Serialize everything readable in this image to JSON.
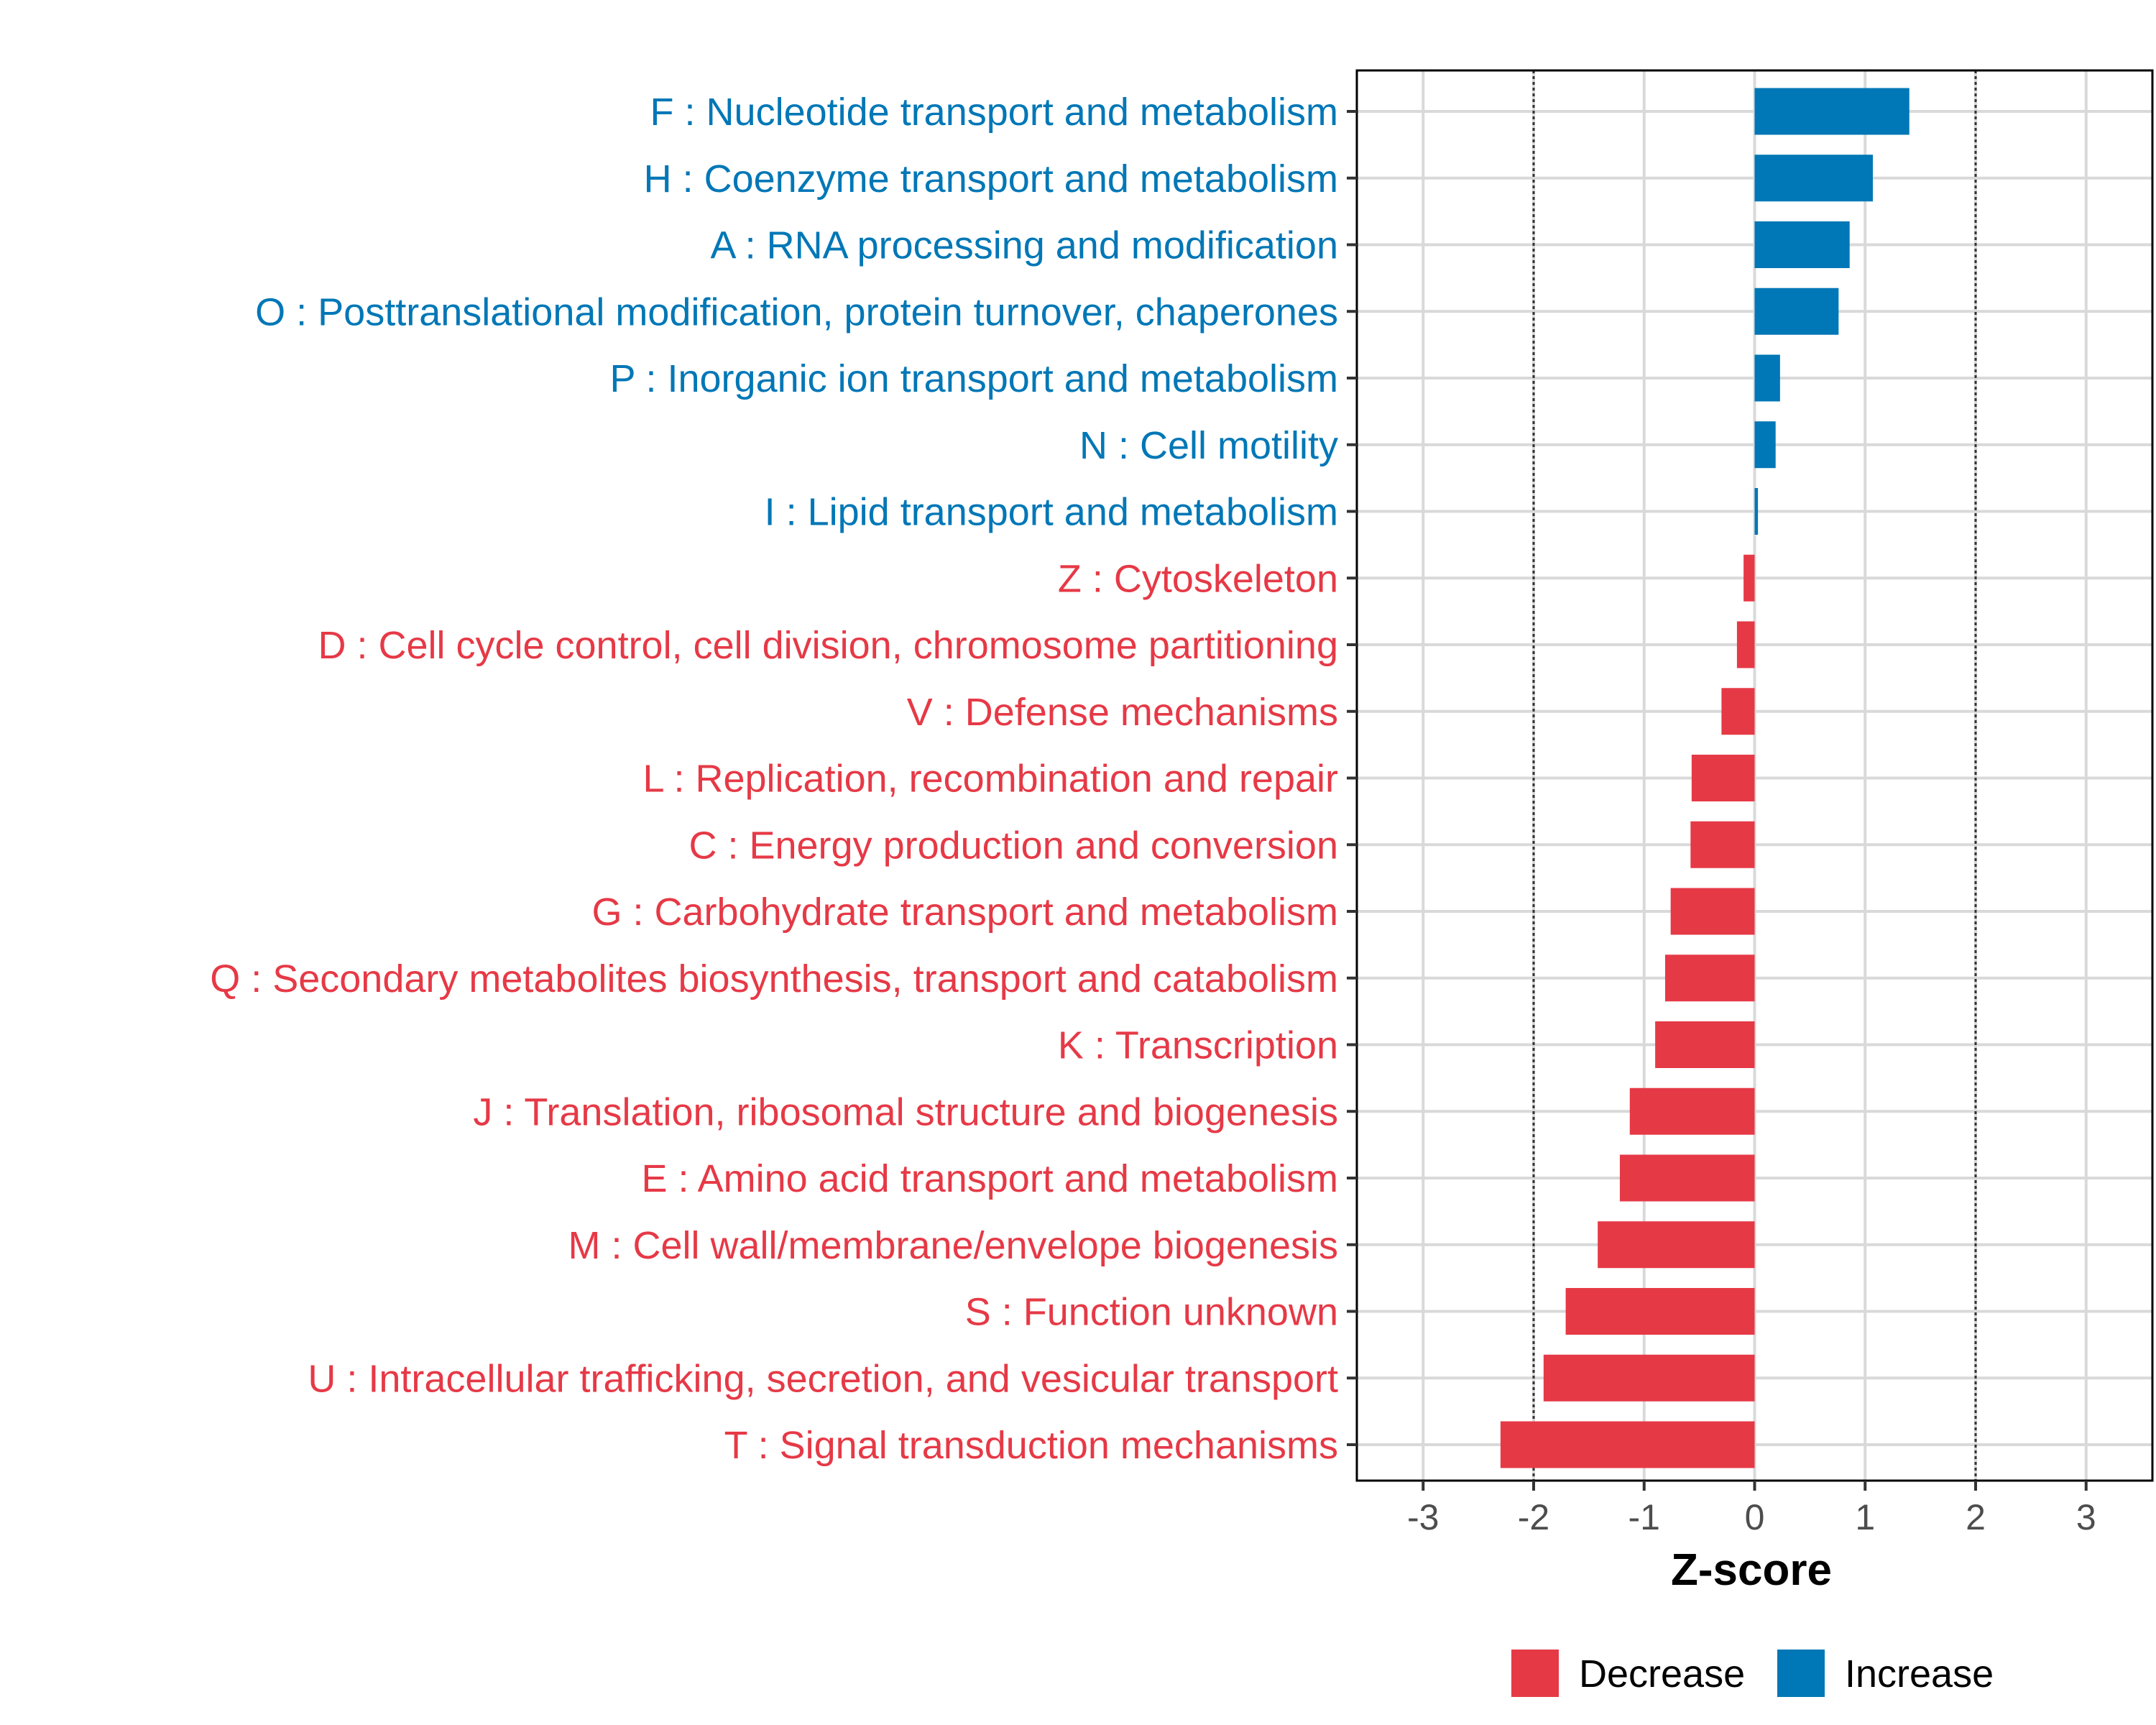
{
  "chart_data": {
    "type": "bar",
    "orientation": "horizontal",
    "xlabel": "Z-score",
    "ylabel": "",
    "xlim": [
      -3.6,
      3.6
    ],
    "x_ticks": [
      -3,
      -2,
      -1,
      0,
      1,
      2,
      3
    ],
    "x_tick_labels": [
      "-3",
      "-2",
      "-1",
      "0",
      "1",
      "2",
      "3"
    ],
    "reference_lines": [
      -2,
      2
    ],
    "grid": true,
    "legend_position": "bottom",
    "legend": [
      {
        "key": "decrease",
        "label": "Decrease",
        "color": "#e63946"
      },
      {
        "key": "increase",
        "label": "Increase",
        "color": "#0077b6"
      }
    ],
    "categories": [
      "F : Nucleotide transport and metabolism",
      "H : Coenzyme transport and metabolism",
      "A : RNA processing and modification",
      "O : Posttranslational modification, protein turnover, chaperones",
      "P : Inorganic ion transport and metabolism",
      "N : Cell motility",
      "I : Lipid transport and metabolism",
      "Z : Cytoskeleton",
      "D : Cell cycle control, cell division, chromosome partitioning",
      "V : Defense mechanisms",
      "L : Replication, recombination and repair",
      "C : Energy production and conversion",
      "G : Carbohydrate transport and metabolism",
      "Q : Secondary metabolites biosynthesis, transport and catabolism",
      "K : Transcription",
      "J : Translation, ribosomal structure and biogenesis",
      "E : Amino acid transport and metabolism",
      "M : Cell wall/membrane/envelope biogenesis",
      "S : Function unknown",
      "U : Intracellular trafficking, secretion, and vesicular transport",
      "T : Signal transduction mechanisms"
    ],
    "values": [
      1.4,
      1.07,
      0.86,
      0.76,
      0.23,
      0.19,
      0.03,
      -0.1,
      -0.16,
      -0.3,
      -0.57,
      -0.58,
      -0.76,
      -0.81,
      -0.9,
      -1.13,
      -1.22,
      -1.42,
      -1.71,
      -1.91,
      -2.3
    ],
    "series": [
      {
        "name": "Increase",
        "values": [
          1.4,
          1.07,
          0.86,
          0.76,
          0.23,
          0.19,
          0.03,
          null,
          null,
          null,
          null,
          null,
          null,
          null,
          null,
          null,
          null,
          null,
          null,
          null,
          null
        ]
      },
      {
        "name": "Decrease",
        "values": [
          null,
          null,
          null,
          null,
          null,
          null,
          null,
          -0.1,
          -0.16,
          -0.3,
          -0.57,
          -0.58,
          -0.76,
          -0.81,
          -0.9,
          -1.13,
          -1.22,
          -1.42,
          -1.71,
          -1.91,
          -2.3
        ]
      }
    ]
  }
}
